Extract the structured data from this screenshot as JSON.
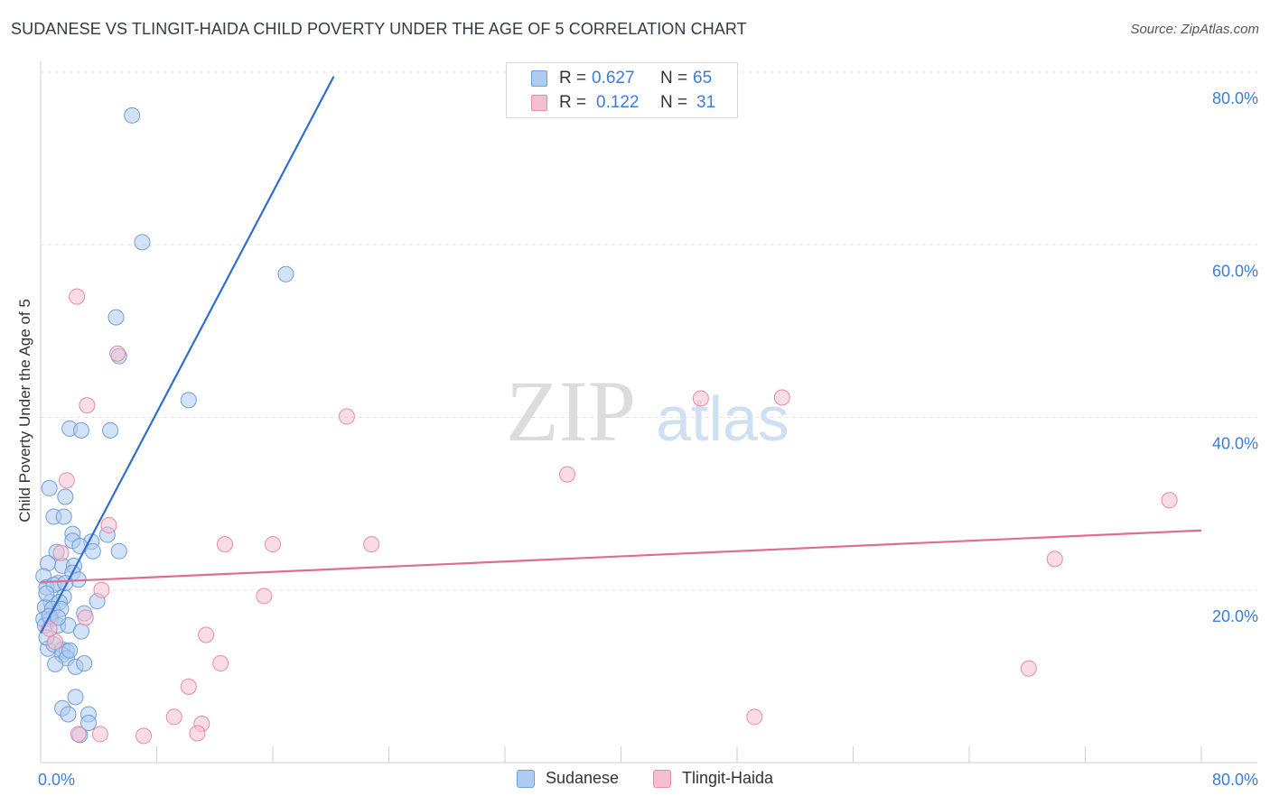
{
  "title": "SUDANESE VS TLINGIT-HAIDA CHILD POVERTY UNDER THE AGE OF 5 CORRELATION CHART",
  "source": "Source: ZipAtlas.com",
  "watermark": {
    "zip": "ZIP",
    "atlas": "atlas"
  },
  "colors": {
    "sudanese_fill": "#aecbf0",
    "sudanese_stroke": "#6f9fd8",
    "sudanese_line": "#2f6fcf",
    "tlingit_fill": "#f6bfd0",
    "tlingit_stroke": "#e88aa8",
    "tlingit_line": "#e06b95",
    "tick_label": "#3b7dd8"
  },
  "legend": {
    "r_label": "R =",
    "n_label": "N =",
    "rows": [
      {
        "r": "0.627",
        "n": "65"
      },
      {
        "r": "0.122",
        "n": "31"
      }
    ]
  },
  "chart_data": {
    "type": "scatter",
    "title": "SUDANESE VS TLINGIT-HAIDA CHILD POVERTY UNDER THE AGE OF 5 CORRELATION CHART",
    "xlabel": "",
    "ylabel": "Child Poverty Under the Age of 5",
    "xlim": [
      0,
      80
    ],
    "ylim": [
      0,
      80
    ],
    "x_tick_labels": [
      "0.0%",
      "80.0%"
    ],
    "y_tick_labels": [
      {
        "value": 20,
        "label": "20.0%"
      },
      {
        "value": 40,
        "label": "40.0%"
      },
      {
        "value": 60,
        "label": "60.0%"
      },
      {
        "value": 80,
        "label": "80.0%"
      }
    ],
    "grid": true,
    "legend_position": "top-center",
    "series": [
      {
        "name": "Sudanese",
        "r": 0.627,
        "n": 65,
        "trendline": [
          [
            0.0,
            15.0
          ],
          [
            20.2,
            79.5
          ]
        ],
        "points": [
          [
            6.3,
            75.0
          ],
          [
            7.0,
            60.3
          ],
          [
            16.9,
            56.6
          ],
          [
            5.2,
            51.6
          ],
          [
            5.4,
            47.1
          ],
          [
            10.2,
            42.0
          ],
          [
            2.0,
            38.7
          ],
          [
            2.8,
            38.5
          ],
          [
            4.8,
            38.5
          ],
          [
            0.6,
            31.8
          ],
          [
            1.7,
            30.8
          ],
          [
            0.9,
            28.5
          ],
          [
            1.6,
            28.5
          ],
          [
            2.2,
            26.5
          ],
          [
            4.6,
            26.4
          ],
          [
            2.2,
            25.7
          ],
          [
            3.5,
            25.6
          ],
          [
            2.7,
            25.1
          ],
          [
            3.6,
            24.5
          ],
          [
            5.4,
            24.5
          ],
          [
            1.1,
            24.4
          ],
          [
            0.5,
            23.1
          ],
          [
            1.5,
            22.8
          ],
          [
            2.3,
            22.8
          ],
          [
            0.2,
            21.6
          ],
          [
            2.2,
            22.0
          ],
          [
            2.6,
            21.2
          ],
          [
            1.2,
            20.8
          ],
          [
            0.4,
            20.3
          ],
          [
            1.6,
            19.2
          ],
          [
            0.7,
            18.6
          ],
          [
            1.3,
            18.6
          ],
          [
            0.3,
            18.0
          ],
          [
            0.8,
            17.8
          ],
          [
            1.4,
            17.8
          ],
          [
            0.2,
            16.6
          ],
          [
            0.7,
            16.6
          ],
          [
            3.9,
            18.7
          ],
          [
            3.0,
            17.3
          ],
          [
            0.3,
            15.9
          ],
          [
            1.2,
            15.9
          ],
          [
            1.9,
            15.9
          ],
          [
            2.8,
            15.2
          ],
          [
            0.5,
            13.2
          ],
          [
            0.9,
            13.7
          ],
          [
            1.5,
            13.1
          ],
          [
            1.8,
            12.9
          ],
          [
            1.5,
            12.5
          ],
          [
            1.8,
            12.1
          ],
          [
            1.0,
            11.4
          ],
          [
            2.4,
            11.1
          ],
          [
            3.0,
            11.5
          ],
          [
            1.5,
            6.3
          ],
          [
            2.4,
            7.6
          ],
          [
            1.9,
            5.6
          ],
          [
            3.3,
            5.6
          ],
          [
            3.3,
            4.6
          ],
          [
            2.7,
            3.2
          ],
          [
            0.4,
            14.5
          ],
          [
            0.9,
            20.6
          ],
          [
            1.7,
            20.8
          ],
          [
            0.6,
            17.0
          ],
          [
            1.2,
            16.8
          ],
          [
            2.0,
            13.0
          ],
          [
            0.4,
            19.6
          ]
        ]
      },
      {
        "name": "Tlingit-Haida",
        "r": 0.122,
        "n": 31,
        "trendline": [
          [
            0.0,
            20.9
          ],
          [
            80.0,
            26.9
          ]
        ],
        "points": [
          [
            2.5,
            54.0
          ],
          [
            5.3,
            47.4
          ],
          [
            3.2,
            41.4
          ],
          [
            21.1,
            40.1
          ],
          [
            45.5,
            42.2
          ],
          [
            51.1,
            42.3
          ],
          [
            36.3,
            33.4
          ],
          [
            1.8,
            32.7
          ],
          [
            77.8,
            30.4
          ],
          [
            4.7,
            27.5
          ],
          [
            12.7,
            25.3
          ],
          [
            16.0,
            25.3
          ],
          [
            22.8,
            25.3
          ],
          [
            1.4,
            24.3
          ],
          [
            69.9,
            23.6
          ],
          [
            4.2,
            20.0
          ],
          [
            15.4,
            19.3
          ],
          [
            3.1,
            16.8
          ],
          [
            11.4,
            14.8
          ],
          [
            1.0,
            14.0
          ],
          [
            12.4,
            11.5
          ],
          [
            68.1,
            10.9
          ],
          [
            10.2,
            8.8
          ],
          [
            9.2,
            5.3
          ],
          [
            11.1,
            4.5
          ],
          [
            49.2,
            5.3
          ],
          [
            4.1,
            3.3
          ],
          [
            2.6,
            3.3
          ],
          [
            7.1,
            3.1
          ],
          [
            10.8,
            3.4
          ],
          [
            0.6,
            15.5
          ]
        ]
      }
    ]
  }
}
